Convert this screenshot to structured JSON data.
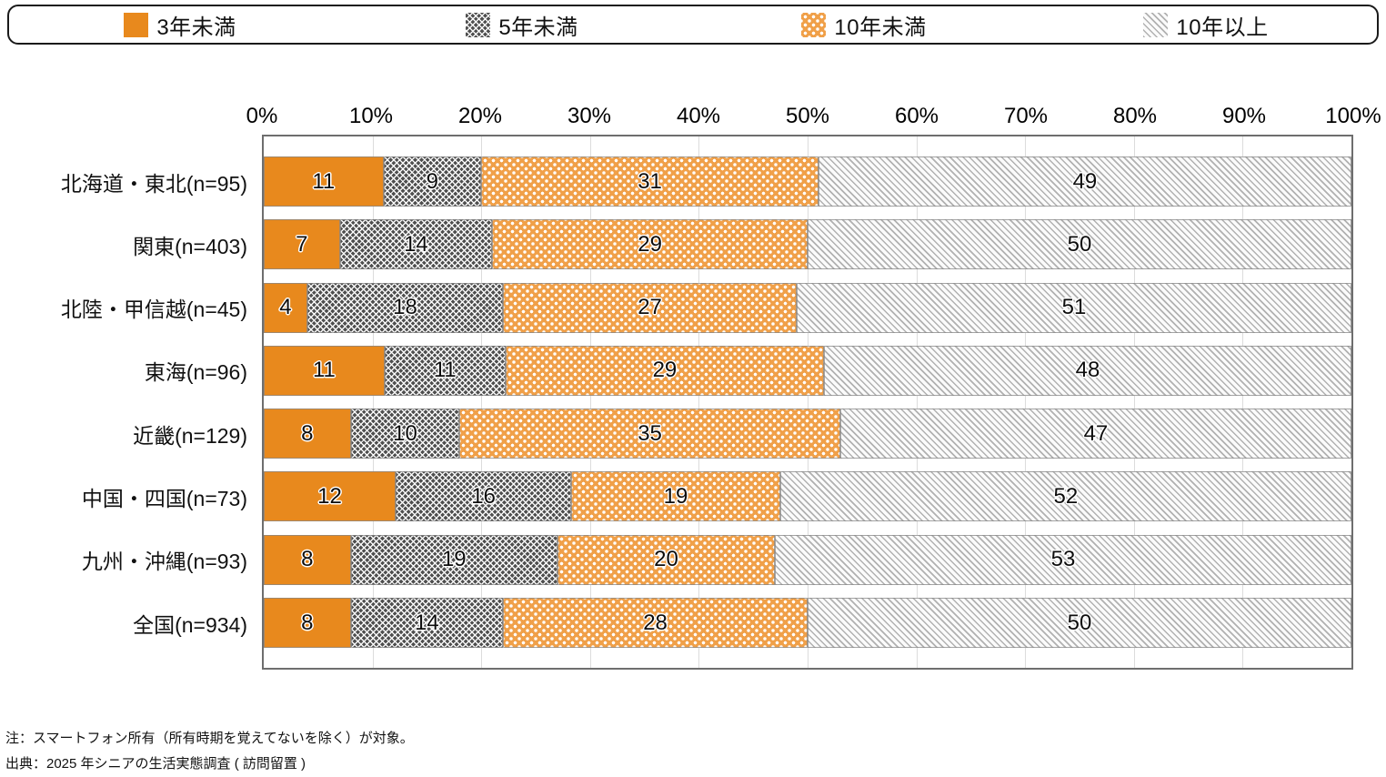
{
  "legend": {
    "items": [
      {
        "label": "3年未満",
        "swatch": "solid-orange"
      },
      {
        "label": "5年未満",
        "swatch": "dark-gray-crosshatch"
      },
      {
        "label": "10年未満",
        "swatch": "orange-white-dots"
      },
      {
        "label": "10年以上",
        "swatch": "light-gray-diagonal-hatch"
      }
    ]
  },
  "chart_data": {
    "type": "bar",
    "orientation": "horizontal",
    "stacked": true,
    "unit": "%",
    "categories": [
      "北海道・東北(n=95)",
      "関東(n=403)",
      "北陸・甲信越(n=45)",
      "東海(n=96)",
      "近畿(n=129)",
      "中国・四国(n=73)",
      "九州・沖縄(n=93)",
      "全国(n=934)"
    ],
    "series": [
      {
        "name": "3年未満",
        "values": [
          11,
          7,
          4,
          11,
          8,
          12,
          8,
          8
        ]
      },
      {
        "name": "5年未満",
        "values": [
          9,
          14,
          18,
          11,
          10,
          16,
          19,
          14
        ]
      },
      {
        "name": "10年未満",
        "values": [
          31,
          29,
          27,
          29,
          35,
          19,
          20,
          28
        ]
      },
      {
        "name": "10年以上",
        "values": [
          49,
          50,
          51,
          48,
          47,
          52,
          53,
          50
        ]
      }
    ],
    "x_ticks": [
      "0%",
      "10%",
      "20%",
      "30%",
      "40%",
      "50%",
      "60%",
      "70%",
      "80%",
      "90%",
      "100%"
    ],
    "xlim": [
      0,
      100
    ],
    "grid": "vertical lines every 10%",
    "legend_position": "top",
    "colors": {
      "solid_orange": "#E8891D",
      "crosshatch_base_gray": "#4F4F4F",
      "dotted_orange": "#F0A049",
      "hatch_line_gray": "#B1B1B1",
      "gridline": "#DCDCDC",
      "plot_border": "#6E6E6E"
    }
  },
  "notes": {
    "line1": "注：スマートフォン所有（所有時期を覚えてないを除く）が対象。",
    "line2": "出典：2025 年シニアの生活実態調査 ( 訪問留置 )"
  }
}
